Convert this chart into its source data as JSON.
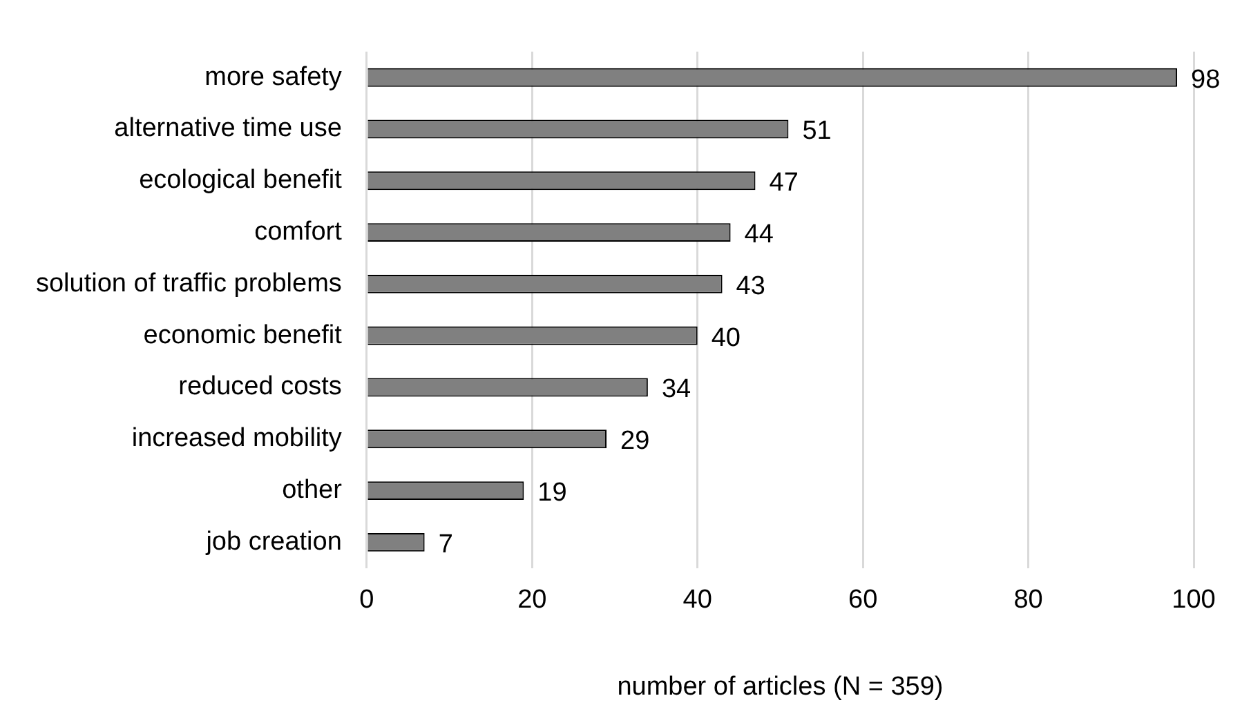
{
  "chart_data": {
    "type": "bar",
    "orientation": "horizontal",
    "xlabel": "number of articles (N = 359)",
    "categories": [
      "more safety",
      "alternative time use",
      "ecological benefit",
      "comfort",
      "solution of traffic problems",
      "economic benefit",
      "reduced costs",
      "increased mobility",
      "other",
      "job creation"
    ],
    "values": [
      98,
      51,
      47,
      44,
      43,
      40,
      34,
      29,
      19,
      7
    ],
    "color": "#808080",
    "xlim": [
      0,
      100
    ],
    "xticks": [
      0,
      20,
      40,
      60,
      80,
      100
    ],
    "grid": "x",
    "data_labels": true,
    "legend": false
  }
}
